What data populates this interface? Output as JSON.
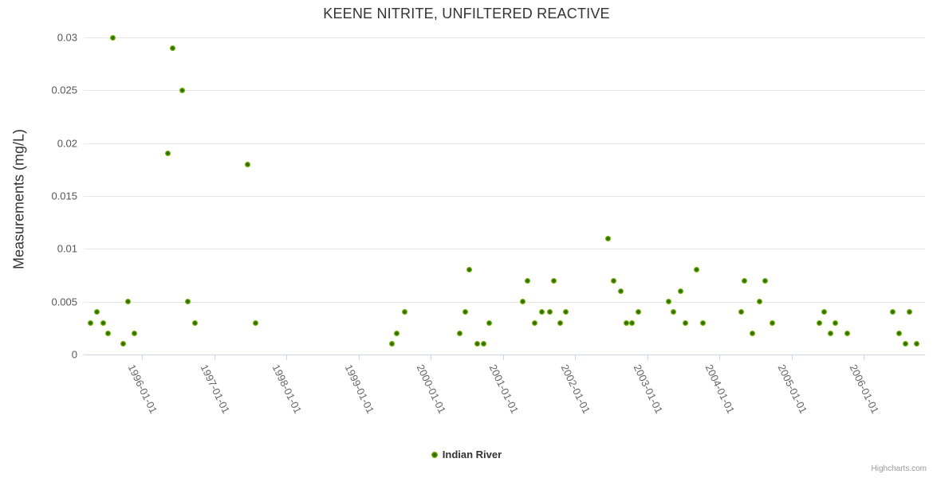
{
  "credits": "Highcharts.com",
  "colors": {
    "background": "#ffffff",
    "title_text": "#333333",
    "axis_label_text": "#666666",
    "gridline": "#e6e6e6",
    "axis_line": "#ccd6eb",
    "marker_outer": "#77b404",
    "marker_inner": "#2f6d02",
    "legend_text": "#333333",
    "credits_text": "#999999"
  },
  "chart_data": {
    "type": "scatter",
    "title": "KEENE NITRITE, UNFILTERED REACTIVE",
    "xlabel": "",
    "ylabel": "Measurements (mg/L)",
    "ylim": [
      0,
      0.03
    ],
    "y_ticks": [
      0,
      0.005,
      0.01,
      0.015,
      0.02,
      0.025,
      0.03
    ],
    "y_tick_labels": [
      "0",
      "0.005",
      "0.01",
      "0.015",
      "0.02",
      "0.025",
      "0.03"
    ],
    "x_tick_labels": [
      "1996-01-01",
      "1997-01-01",
      "1998-01-01",
      "1999-01-01",
      "2000-01-01",
      "2001-01-01",
      "2002-01-01",
      "2003-01-01",
      "2004-01-01",
      "2005-01-01",
      "2006-01-01"
    ],
    "xlim_years": [
      1995.19,
      2006.85
    ],
    "grid": true,
    "legend_position": "bottom-center",
    "series": [
      {
        "name": "Indian River",
        "color": "#77b404",
        "points": [
          [
            "1995-04-15",
            0.003
          ],
          [
            "1995-05-18",
            0.004
          ],
          [
            "1995-06-17",
            0.003
          ],
          [
            "1995-07-12",
            0.002
          ],
          [
            "1995-08-07",
            0.03
          ],
          [
            "1995-09-27",
            0.001
          ],
          [
            "1995-10-23",
            0.005
          ],
          [
            "1995-11-25",
            0.002
          ],
          [
            "1996-05-11",
            0.019
          ],
          [
            "1996-06-06",
            0.029
          ],
          [
            "1996-07-23",
            0.025
          ],
          [
            "1996-08-18",
            0.005
          ],
          [
            "1996-09-24",
            0.003
          ],
          [
            "1997-06-20",
            0.018
          ],
          [
            "1997-07-30",
            0.003
          ],
          [
            "1999-06-17",
            0.001
          ],
          [
            "1999-07-12",
            0.002
          ],
          [
            "1999-08-21",
            0.004
          ],
          [
            "2000-05-25",
            0.002
          ],
          [
            "2000-06-24",
            0.004
          ],
          [
            "2000-07-15",
            0.008
          ],
          [
            "2000-08-25",
            0.001
          ],
          [
            "2000-09-27",
            0.001
          ],
          [
            "2000-10-23",
            0.003
          ],
          [
            "2001-04-12",
            0.005
          ],
          [
            "2001-05-03",
            0.007
          ],
          [
            "2001-06-09",
            0.003
          ],
          [
            "2001-07-15",
            0.004
          ],
          [
            "2001-08-25",
            0.004
          ],
          [
            "2001-09-17",
            0.007
          ],
          [
            "2001-10-19",
            0.003
          ],
          [
            "2001-11-14",
            0.004
          ],
          [
            "2002-06-17",
            0.011
          ],
          [
            "2002-07-15",
            0.007
          ],
          [
            "2002-08-18",
            0.006
          ],
          [
            "2002-09-17",
            0.003
          ],
          [
            "2002-10-15",
            0.003
          ],
          [
            "2002-11-18",
            0.004
          ],
          [
            "2003-04-19",
            0.005
          ],
          [
            "2003-05-11",
            0.004
          ],
          [
            "2003-06-17",
            0.006
          ],
          [
            "2003-07-12",
            0.003
          ],
          [
            "2003-09-06",
            0.008
          ],
          [
            "2003-10-08",
            0.003
          ],
          [
            "2004-04-19",
            0.004
          ],
          [
            "2004-05-07",
            0.007
          ],
          [
            "2004-06-17",
            0.002
          ],
          [
            "2004-07-23",
            0.005
          ],
          [
            "2004-08-21",
            0.007
          ],
          [
            "2004-09-27",
            0.003
          ],
          [
            "2005-05-21",
            0.003
          ],
          [
            "2005-06-13",
            0.004
          ],
          [
            "2005-07-15",
            0.002
          ],
          [
            "2005-08-11",
            0.003
          ],
          [
            "2005-10-08",
            0.002
          ],
          [
            "2006-05-25",
            0.004
          ],
          [
            "2006-06-27",
            0.002
          ],
          [
            "2006-07-30",
            0.001
          ],
          [
            "2006-08-21",
            0.004
          ],
          [
            "2006-09-24",
            0.001
          ]
        ]
      }
    ]
  }
}
